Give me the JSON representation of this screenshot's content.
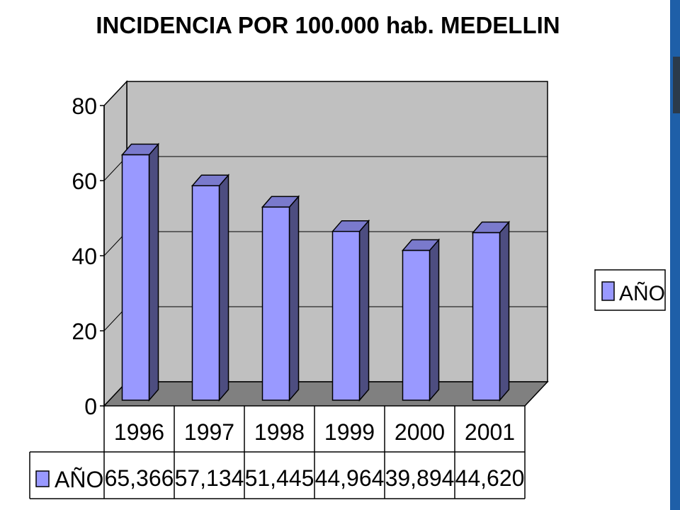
{
  "colors": {
    "wall": "#c0c0c0",
    "floor": "#808080",
    "bar_front": "#9999ff",
    "bar_side": "#4d4d80",
    "bar_top": "#7a7acc",
    "edge_strip_blue": "#1e5fa8",
    "edge_strip_dark": "#2b3a4a"
  },
  "chart_data": {
    "type": "bar",
    "title": "INCIDENCIA POR 100.000 hab. MEDELLIN",
    "categories": [
      "1996",
      "1997",
      "1998",
      "1999",
      "2000",
      "2001"
    ],
    "series": [
      {
        "name": "AÑO",
        "values": [
          65.366,
          57.134,
          51.445,
          44.964,
          39.894,
          44.62
        ],
        "labels": [
          "65,366",
          "57,134",
          "51,445",
          "44,964",
          "39,894",
          "44,620"
        ]
      }
    ],
    "ylim": [
      0,
      80
    ],
    "yticks": [
      "0",
      "20",
      "40",
      "60",
      "80"
    ],
    "grid": true,
    "legend_position": "right",
    "data_table": true
  }
}
